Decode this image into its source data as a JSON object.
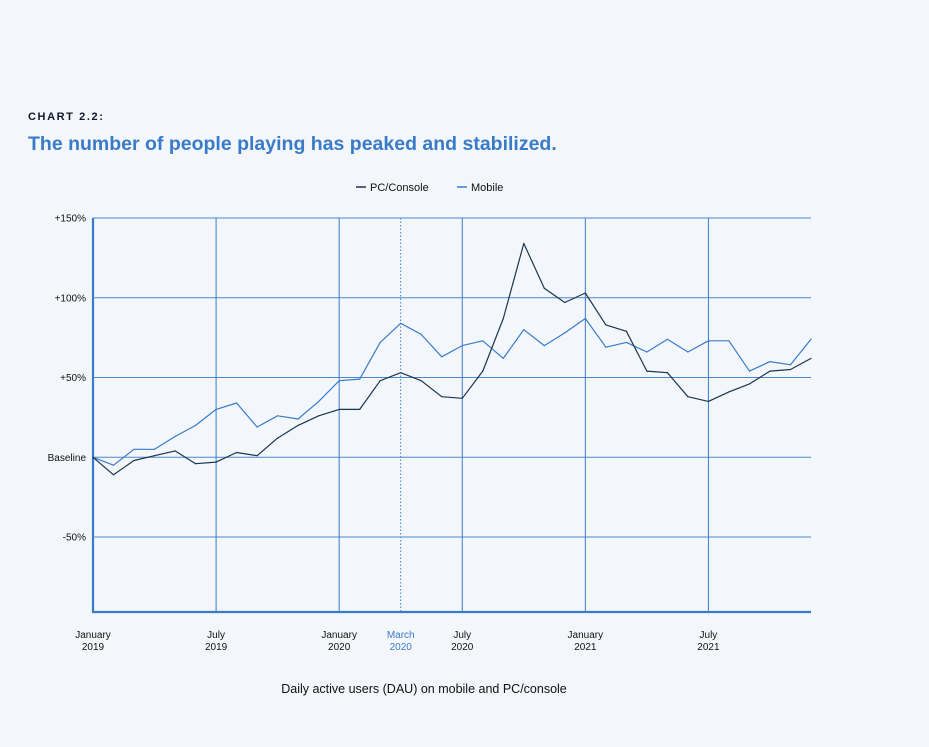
{
  "header": {
    "kicker": "CHART 2.2:",
    "title": "The number of people playing has peaked and stabilized."
  },
  "colors": {
    "pc": "#1b3550",
    "mobile": "#3a7bc8",
    "grid": "#3a7bc8",
    "title": "#3a7bc8"
  },
  "chart_data": {
    "type": "line",
    "title": "The number of people playing has peaked and stabilized.",
    "xlabel": "Daily active users (DAU) on mobile and PC/console",
    "ylabel": "",
    "legend_position": "top-center",
    "ylim": [
      -97,
      150
    ],
    "xlim": [
      0,
      35
    ],
    "y_ticks": [
      {
        "value": 150,
        "label": "+150%"
      },
      {
        "value": 100,
        "label": "+100%"
      },
      {
        "value": 50,
        "label": "+50%"
      },
      {
        "value": 0,
        "label": "Baseline"
      },
      {
        "value": -50,
        "label": "-50%"
      }
    ],
    "x_ticks": [
      {
        "value": 0,
        "line1": "January",
        "line2": "2019",
        "highlight": false
      },
      {
        "value": 6,
        "line1": "July",
        "line2": "2019",
        "highlight": false
      },
      {
        "value": 12,
        "line1": "January",
        "line2": "2020",
        "highlight": false
      },
      {
        "value": 15,
        "line1": "March",
        "line2": "2020",
        "highlight": true
      },
      {
        "value": 18,
        "line1": "July",
        "line2": "2020",
        "highlight": false
      },
      {
        "value": 24,
        "line1": "January",
        "line2": "2021",
        "highlight": false
      },
      {
        "value": 30,
        "line1": "July",
        "line2": "2021",
        "highlight": false
      }
    ],
    "series": [
      {
        "name": "PC/Console",
        "color": "#1b3550",
        "values": [
          0,
          -11,
          -2,
          1,
          4,
          -4,
          -3,
          3,
          1,
          12,
          20,
          26,
          30,
          30,
          48,
          53,
          48,
          38,
          37,
          54,
          87,
          134,
          106,
          97,
          103,
          83,
          79,
          54,
          53,
          38,
          35,
          41,
          46,
          54,
          55,
          62
        ]
      },
      {
        "name": "Mobile",
        "color": "#3a7bc8",
        "values": [
          0,
          -5,
          5,
          5,
          13,
          20,
          30,
          34,
          19,
          26,
          24,
          35,
          48,
          49,
          72,
          84,
          77,
          63,
          70,
          73,
          62,
          80,
          70,
          78,
          87,
          69,
          72,
          66,
          74,
          66,
          73,
          73,
          54,
          60,
          58,
          74
        ]
      }
    ]
  }
}
